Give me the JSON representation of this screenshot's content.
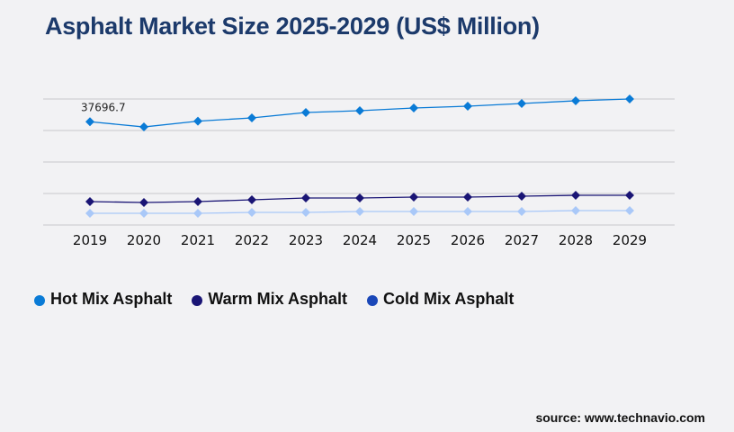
{
  "title": "Asphalt Market Size 2025-2029 (US$ Million)",
  "source": "source: www.technavio.com",
  "chart_data": {
    "type": "line",
    "title": "Asphalt Market Size 2025-2029 (US$ Million)",
    "categories": [
      "2019",
      "2020",
      "2021",
      "2022",
      "2023",
      "2024",
      "2025",
      "2026",
      "2027",
      "2028",
      "2029"
    ],
    "ylim": [
      0,
      46000
    ],
    "grid": true,
    "legend": "bottom-left",
    "series": [
      {
        "name": "Hot Mix Asphalt",
        "color": "#0a7bd6",
        "line_color": "#0a7bd6",
        "values": [
          37696.7,
          35800,
          37900,
          39100,
          41070,
          41730,
          42710,
          43370,
          44360,
          45340,
          46000
        ]
      },
      {
        "name": "Warm Mix Asphalt",
        "color": "#1a1575",
        "line_color": "#1a1575",
        "values": [
          8540,
          8210,
          8540,
          9200,
          9860,
          9860,
          10190,
          10190,
          10510,
          10840,
          10840
        ]
      },
      {
        "name": "Cold Mix Asphalt",
        "color": "#1a47b8",
        "line_color": "#a9c8f8",
        "values": [
          4270,
          4270,
          4270,
          4600,
          4600,
          4930,
          4930,
          4930,
          4930,
          5260,
          5260
        ]
      }
    ],
    "annotations": [
      {
        "series": 0,
        "index": 0,
        "text": "37696.7"
      }
    ]
  }
}
